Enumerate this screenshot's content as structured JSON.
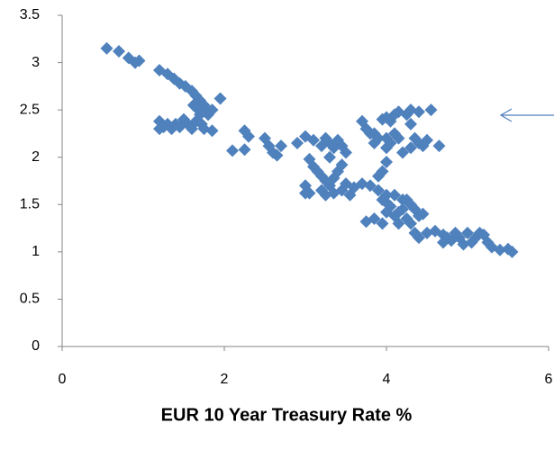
{
  "chart_data": {
    "type": "scatter",
    "x_label": "EUR 10 Year Treasury Rate %",
    "color": "#4f81bd",
    "xlim": [
      0,
      6
    ],
    "ylim": [
      0,
      3.5
    ],
    "xticks": [
      0,
      2,
      4,
      6
    ],
    "yticks": [
      0,
      0.5,
      1,
      1.5,
      2,
      2.5,
      3,
      3.5
    ],
    "x": [
      0.55,
      0.7,
      0.82,
      0.9,
      0.95,
      1.2,
      1.3,
      1.38,
      1.45,
      1.52,
      1.6,
      1.65,
      1.7,
      1.75,
      1.78,
      1.8,
      1.85,
      1.95,
      1.2,
      1.25,
      1.3,
      1.4,
      1.5,
      1.55,
      1.6,
      1.65,
      1.7,
      1.72,
      1.75,
      1.85,
      1.62,
      1.68,
      1.2,
      1.35,
      1.45,
      2.1,
      2.25,
      2.3,
      2.25,
      2.5,
      2.55,
      2.6,
      2.65,
      2.7,
      2.9,
      3.0,
      3.1,
      3.2,
      3.25,
      3.3,
      3.35,
      3.4,
      3.45,
      3.5,
      3.3,
      3.05,
      3.1,
      3.15,
      3.2,
      3.25,
      3.3,
      3.35,
      3.4,
      3.45,
      3.0,
      3.05,
      3.2,
      3.25,
      3.35,
      3.45,
      3.55,
      3.6,
      3.7,
      3.8,
      3.9,
      4.0,
      3.5,
      3.0,
      3.7,
      3.75,
      3.8,
      3.85,
      3.9,
      3.95,
      4.0,
      4.05,
      4.1,
      4.15,
      4.25,
      4.3,
      4.4,
      4.55,
      4.0,
      4.05,
      4.1,
      4.15,
      4.2,
      4.3,
      4.35,
      4.4,
      4.45,
      4.5,
      4.65,
      4.3,
      3.95,
      4.0,
      3.9,
      4.0,
      3.85,
      3.75,
      3.85,
      3.95,
      4.0,
      4.05,
      4.1,
      4.15,
      4.2,
      4.25,
      4.3,
      4.35,
      4.4,
      4.45,
      4.3,
      4.35,
      4.4,
      4.5,
      4.6,
      4.7,
      4.75,
      4.8,
      4.85,
      4.9,
      5.0,
      5.05,
      5.1,
      5.15,
      5.2,
      5.25,
      5.3,
      5.4,
      5.5,
      5.55,
      4.95,
      4.7,
      4.2,
      4.1,
      3.95,
      4.0,
      4.15,
      4.25
    ],
    "y": [
      3.15,
      3.12,
      3.05,
      3.0,
      3.02,
      2.92,
      2.88,
      2.83,
      2.78,
      2.75,
      2.7,
      2.65,
      2.6,
      2.55,
      2.5,
      2.45,
      2.5,
      2.62,
      2.38,
      2.32,
      2.35,
      2.35,
      2.4,
      2.35,
      2.3,
      2.38,
      2.45,
      2.35,
      2.3,
      2.28,
      2.55,
      2.5,
      2.3,
      2.3,
      2.32,
      2.07,
      2.28,
      2.22,
      2.08,
      2.2,
      2.12,
      2.05,
      2.02,
      2.12,
      2.15,
      2.22,
      2.18,
      2.12,
      2.2,
      2.15,
      2.1,
      2.18,
      2.12,
      2.05,
      2.0,
      1.98,
      1.9,
      1.85,
      1.8,
      1.75,
      1.7,
      1.78,
      1.85,
      1.92,
      1.7,
      1.62,
      1.65,
      1.6,
      1.62,
      1.65,
      1.6,
      1.68,
      1.72,
      1.7,
      1.65,
      1.6,
      1.72,
      1.62,
      2.38,
      2.3,
      2.25,
      2.15,
      2.2,
      2.4,
      2.42,
      2.38,
      2.45,
      2.48,
      2.45,
      2.5,
      2.48,
      2.5,
      2.2,
      2.15,
      2.25,
      2.2,
      2.05,
      2.1,
      2.2,
      2.15,
      2.12,
      2.18,
      2.12,
      2.35,
      1.85,
      1.95,
      1.8,
      2.1,
      2.25,
      1.32,
      1.35,
      1.3,
      1.42,
      1.48,
      1.38,
      1.3,
      1.45,
      1.55,
      1.5,
      1.45,
      1.38,
      1.4,
      1.3,
      1.2,
      1.15,
      1.2,
      1.22,
      1.18,
      1.15,
      1.12,
      1.2,
      1.15,
      1.2,
      1.1,
      1.15,
      1.2,
      1.18,
      1.1,
      1.05,
      1.02,
      1.03,
      1.0,
      1.08,
      1.1,
      1.55,
      1.6,
      1.55,
      1.52,
      1.42,
      1.35
    ]
  }
}
